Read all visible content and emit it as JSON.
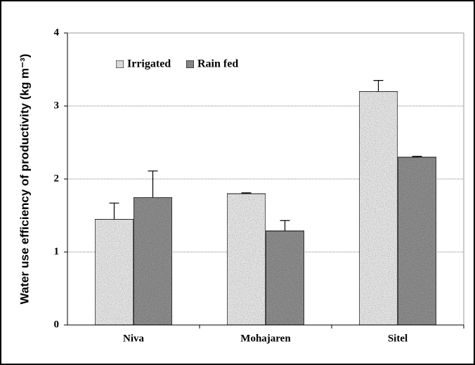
{
  "chart_data": {
    "type": "bar",
    "ylabel": "Water use efficiency of productivity (kg m⁻³)",
    "categories": [
      "Niva",
      "Mohajaren",
      "Sitel"
    ],
    "series": [
      {
        "name": "Irrigated",
        "color": "#e4e4e4",
        "values": [
          1.45,
          1.8,
          3.2
        ],
        "errors": [
          0.22,
          0.01,
          0.15
        ]
      },
      {
        "name": "Rain fed",
        "color": "#8c8c8c",
        "values": [
          1.75,
          1.29,
          2.3
        ],
        "errors": [
          0.36,
          0.14,
          0.01
        ]
      }
    ],
    "ylim": [
      0,
      4
    ],
    "yticks": [
      0,
      1,
      2,
      3,
      4
    ],
    "grid": true
  }
}
